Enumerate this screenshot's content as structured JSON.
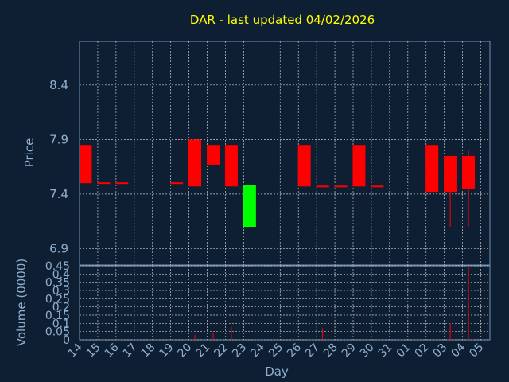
{
  "chart_data": {
    "type": "candlestick",
    "title": "DAR - last updated 04/02/2026",
    "xlabel": "Day",
    "ylabel": "Price",
    "volume_label": "Volume (0000)",
    "grid": true,
    "price_ylim": [
      6.75,
      8.8
    ],
    "price_ticks": [
      "8.4",
      "7.9",
      "7.4",
      "6.9"
    ],
    "volume_ylim": [
      0,
      0.45
    ],
    "volume_ticks": [
      "0.45",
      "0.4",
      "0.35",
      "0.3",
      "0.25",
      "0.2",
      "0.15",
      "0.1",
      "0.05",
      "0"
    ],
    "x_ticks": [
      "14",
      "15",
      "16",
      "17",
      "18",
      "19",
      "20",
      "21",
      "22",
      "23",
      "24",
      "25",
      "26",
      "27",
      "28",
      "29",
      "30",
      "31",
      "01",
      "02",
      "03",
      "04",
      "05"
    ],
    "colors": {
      "up": "#00ff00",
      "down": "#ff0000",
      "title": "#ffff00",
      "axis_text": "#8fb0d0",
      "grid": "#c8c8c8",
      "frame": "#7090b0"
    },
    "candles": [
      {
        "day": "14",
        "open": 7.85,
        "high": 7.85,
        "low": 7.5,
        "close": 7.5,
        "volume": 0
      },
      {
        "day": "15",
        "open": 7.5,
        "high": 7.5,
        "low": 7.5,
        "close": 7.5,
        "volume": 0
      },
      {
        "day": "16",
        "open": 7.5,
        "high": 7.5,
        "low": 7.5,
        "close": 7.5,
        "volume": 0
      },
      {
        "day": "19",
        "open": 7.5,
        "high": 7.5,
        "low": 7.5,
        "close": 7.5,
        "volume": 0
      },
      {
        "day": "20",
        "open": 7.9,
        "high": 7.9,
        "low": 7.47,
        "close": 7.47,
        "volume": 0.03
      },
      {
        "day": "21",
        "open": 7.85,
        "high": 7.85,
        "low": 7.67,
        "close": 7.67,
        "volume": 0.04
      },
      {
        "day": "22",
        "open": 7.85,
        "high": 7.85,
        "low": 7.47,
        "close": 7.47,
        "volume": 0.08
      },
      {
        "day": "23",
        "open": 7.1,
        "high": 7.48,
        "low": 7.1,
        "close": 7.48,
        "volume": 0
      },
      {
        "day": "26",
        "open": 7.85,
        "high": 7.85,
        "low": 7.47,
        "close": 7.47,
        "volume": 0
      },
      {
        "day": "27",
        "open": 7.47,
        "high": 7.47,
        "low": 7.47,
        "close": 7.47,
        "volume": 0.07
      },
      {
        "day": "28",
        "open": 7.47,
        "high": 7.47,
        "low": 7.47,
        "close": 7.47,
        "volume": 0
      },
      {
        "day": "29",
        "open": 7.85,
        "high": 7.85,
        "low": 7.1,
        "close": 7.47,
        "volume": 0
      },
      {
        "day": "30",
        "open": 7.47,
        "high": 7.47,
        "low": 7.47,
        "close": 7.47,
        "volume": 0
      },
      {
        "day": "02",
        "open": 7.85,
        "high": 7.85,
        "low": 7.42,
        "close": 7.42,
        "volume": 0
      },
      {
        "day": "03",
        "open": 7.75,
        "high": 7.75,
        "low": 7.1,
        "close": 7.42,
        "volume": 0.1
      },
      {
        "day": "04",
        "open": 7.75,
        "high": 7.8,
        "low": 7.1,
        "close": 7.45,
        "volume": 0.45
      }
    ]
  }
}
